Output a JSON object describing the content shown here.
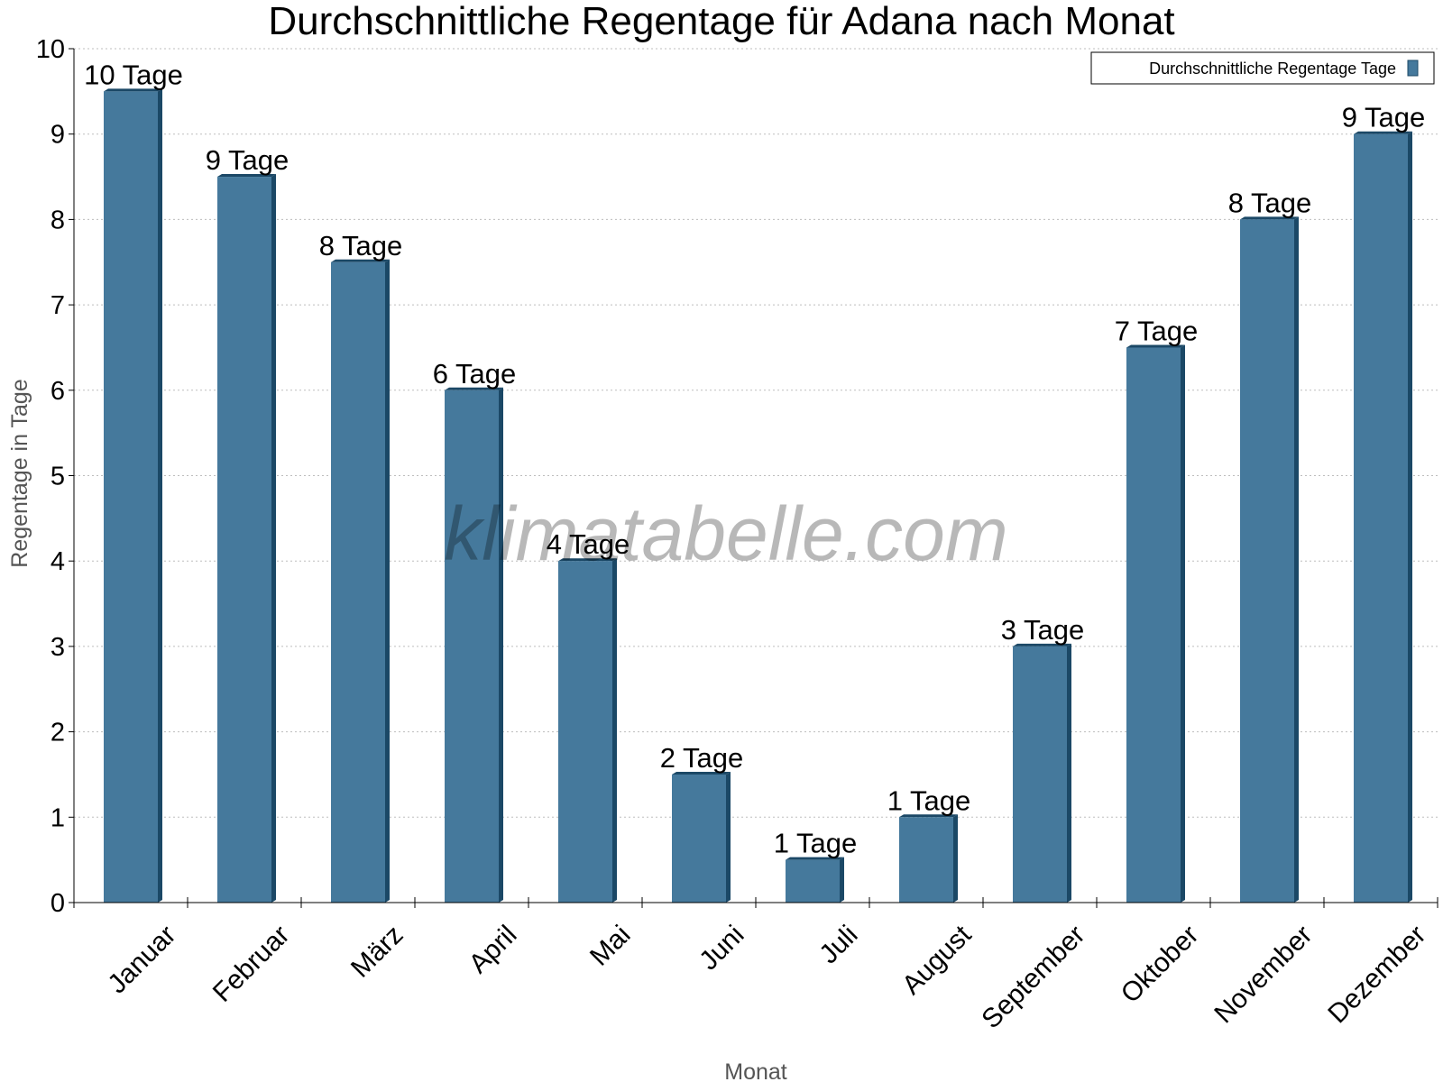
{
  "chart_data": {
    "type": "bar",
    "title": "Durchschnittliche Regentage für Adana nach Monat",
    "xlabel": "Monat",
    "ylabel": "Regentage in Tage",
    "ylim": [
      0,
      10
    ],
    "yticks": [
      "0",
      "1",
      "2",
      "3",
      "4",
      "5",
      "6",
      "7",
      "8",
      "9",
      "10"
    ],
    "grid": true,
    "legend_position": "top-right",
    "categories": [
      "Januar",
      "Februar",
      "März",
      "April",
      "Mai",
      "Juni",
      "Juli",
      "August",
      "September",
      "Oktober",
      "November",
      "Dezember"
    ],
    "series": [
      {
        "name": "Durchschnittliche Regentage Tage",
        "color": "#45799c",
        "values": [
          9.5,
          8.5,
          7.5,
          6,
          4,
          1.5,
          0.5,
          1,
          3,
          6.5,
          8,
          9
        ],
        "labels": [
          "10 Tage",
          "9 Tage",
          "8 Tage",
          "6 Tage",
          "4 Tage",
          "2 Tage",
          "1 Tage",
          "1 Tage",
          "3 Tage",
          "7 Tage",
          "8 Tage",
          "9 Tage"
        ]
      }
    ],
    "watermark": "klimatabelle.com"
  }
}
